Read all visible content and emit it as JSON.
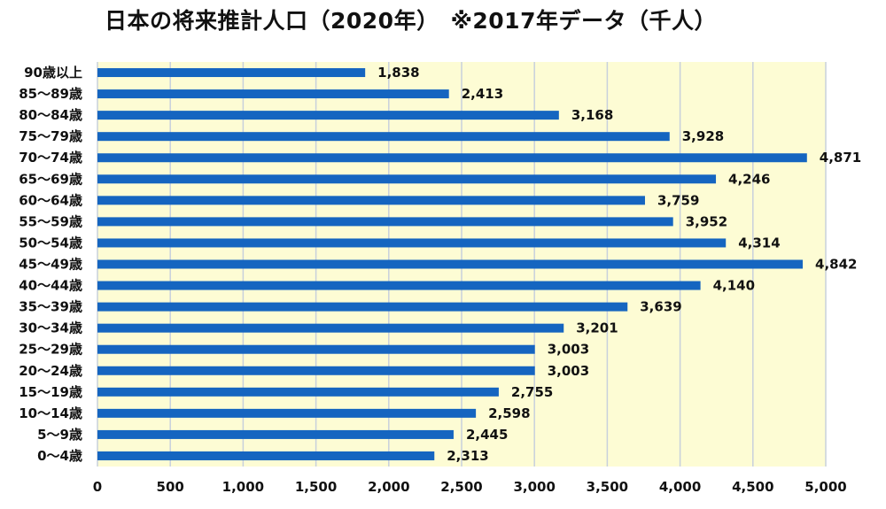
{
  "chart_data": {
    "type": "bar",
    "orientation": "horizontal",
    "title": "日本の将来推計人口（2020年）　※2017年データ（千人）",
    "categories": [
      "90歳以上",
      "85〜89歳",
      "80〜84歳",
      "75〜79歳",
      "70〜74歳",
      "65〜69歳",
      "60〜64歳",
      "55〜59歳",
      "50〜54歳",
      "45〜49歳",
      "40〜44歳",
      "35〜39歳",
      "30〜34歳",
      "25〜29歳",
      "20〜24歳",
      "15〜19歳",
      "10〜14歳",
      "5〜9歳",
      "0〜4歳"
    ],
    "values": [
      1838,
      2413,
      3168,
      3928,
      4871,
      4246,
      3759,
      3952,
      4314,
      4842,
      4140,
      3639,
      3201,
      3003,
      3003,
      2755,
      2598,
      2445,
      2313
    ],
    "value_labels": [
      "1,838",
      "2,413",
      "3,168",
      "3,928",
      "4,871",
      "4,246",
      "3,759",
      "3,952",
      "4,314",
      "4,842",
      "4,140",
      "3,639",
      "3,201",
      "3,003",
      "3,003",
      "2,755",
      "2,598",
      "2,445",
      "2,313"
    ],
    "xlim": [
      0,
      5000
    ],
    "xticks": [
      0,
      500,
      1000,
      1500,
      2000,
      2500,
      3000,
      3500,
      4000,
      4500,
      5000
    ],
    "xtick_labels": [
      "0",
      "500",
      "1,000",
      "1,500",
      "2,000",
      "2,500",
      "3,000",
      "3,500",
      "4,000",
      "4,500",
      "5,000"
    ],
    "xlabel": "",
    "ylabel": "",
    "grid": "vertical",
    "legend": "none",
    "colors": {
      "bar": "#1565c0",
      "plot_background": "#fdfcd4",
      "gridline": "#c8d0dc",
      "text": "#111111"
    }
  }
}
